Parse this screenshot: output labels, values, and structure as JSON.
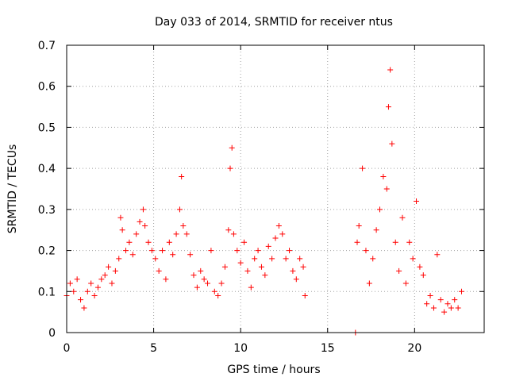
{
  "chart_data": {
    "type": "scatter",
    "title": "Day 033 of 2014, SRMTID for receiver ntus",
    "xlabel": "GPS time / hours",
    "ylabel": "SRMTID / TECUs",
    "xlim": [
      0,
      24
    ],
    "ylim": [
      0,
      0.7
    ],
    "xticks": [
      0,
      5,
      10,
      15,
      20
    ],
    "xtick_labels": [
      "0",
      "5",
      "10",
      "15",
      "20"
    ],
    "yticks": [
      0,
      0.1,
      0.2,
      0.3,
      0.4,
      0.5,
      0.6,
      0.7
    ],
    "ytick_labels": [
      "0",
      "0.1",
      "0.2",
      "0.3",
      "0.4",
      "0.5",
      "0.6",
      "0.7"
    ],
    "grid": true,
    "marker": "plus",
    "color": "#ff0000",
    "series": [
      {
        "name": "SRMTID",
        "x": [
          0.0,
          0.2,
          0.4,
          0.6,
          0.8,
          1.0,
          1.2,
          1.4,
          1.6,
          1.8,
          2.0,
          2.2,
          2.4,
          2.6,
          2.8,
          3.0,
          3.1,
          3.2,
          3.4,
          3.6,
          3.8,
          4.0,
          4.2,
          4.4,
          4.5,
          4.7,
          4.9,
          5.1,
          5.3,
          5.5,
          5.7,
          5.9,
          6.1,
          6.3,
          6.5,
          6.6,
          6.7,
          6.9,
          7.1,
          7.3,
          7.5,
          7.7,
          7.9,
          8.1,
          8.3,
          8.5,
          8.7,
          8.9,
          9.1,
          9.3,
          9.4,
          9.5,
          9.6,
          9.8,
          10.0,
          10.2,
          10.4,
          10.6,
          10.8,
          11.0,
          11.2,
          11.4,
          11.6,
          11.8,
          12.0,
          12.2,
          12.4,
          12.6,
          12.8,
          13.0,
          13.2,
          13.4,
          13.6,
          13.7,
          16.6,
          16.7,
          16.8,
          17.0,
          17.2,
          17.4,
          17.6,
          17.8,
          18.0,
          18.2,
          18.4,
          18.5,
          18.6,
          18.7,
          18.9,
          19.1,
          19.3,
          19.5,
          19.7,
          19.9,
          20.1,
          20.3,
          20.5,
          20.7,
          20.9,
          21.1,
          21.3,
          21.5,
          21.7,
          21.9,
          22.1,
          22.3,
          22.5,
          22.7
        ],
        "y": [
          0.09,
          0.12,
          0.1,
          0.13,
          0.08,
          0.06,
          0.1,
          0.12,
          0.09,
          0.11,
          0.13,
          0.14,
          0.16,
          0.12,
          0.15,
          0.18,
          0.28,
          0.25,
          0.2,
          0.22,
          0.19,
          0.24,
          0.27,
          0.3,
          0.26,
          0.22,
          0.2,
          0.18,
          0.15,
          0.2,
          0.13,
          0.22,
          0.19,
          0.24,
          0.3,
          0.38,
          0.26,
          0.24,
          0.19,
          0.14,
          0.11,
          0.15,
          0.13,
          0.12,
          0.2,
          0.1,
          0.09,
          0.12,
          0.16,
          0.25,
          0.4,
          0.45,
          0.24,
          0.2,
          0.17,
          0.22,
          0.15,
          0.11,
          0.18,
          0.2,
          0.16,
          0.14,
          0.21,
          0.18,
          0.23,
          0.26,
          0.24,
          0.18,
          0.2,
          0.15,
          0.13,
          0.18,
          0.16,
          0.09,
          0.0,
          0.22,
          0.26,
          0.4,
          0.2,
          0.12,
          0.18,
          0.25,
          0.3,
          0.38,
          0.35,
          0.55,
          0.64,
          0.46,
          0.22,
          0.15,
          0.28,
          0.12,
          0.22,
          0.18,
          0.32,
          0.16,
          0.14,
          0.07,
          0.09,
          0.06,
          0.19,
          0.08,
          0.05,
          0.07,
          0.06,
          0.08,
          0.06,
          0.1
        ]
      }
    ]
  }
}
